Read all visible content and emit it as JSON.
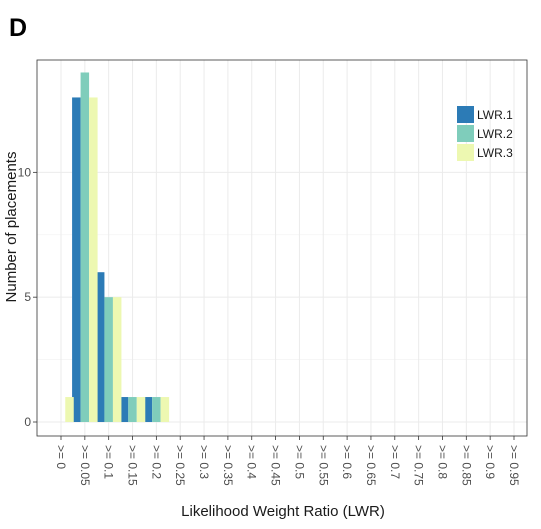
{
  "panel_label": "D",
  "chart_data": {
    "type": "bar",
    "xlabel": "Likelihood Weight Ratio (LWR)",
    "ylabel": "Number of placements",
    "categories": [
      ">= 0",
      ">= 0.05",
      ">= 0.1",
      ">= 0.15",
      ">= 0.2",
      ">= 0.25",
      ">= 0.3",
      ">= 0.35",
      ">= 0.4",
      ">= 0.45",
      ">= 0.5",
      ">= 0.55",
      ">= 0.6",
      ">= 0.65",
      ">= 0.7",
      ">= 0.75",
      ">= 0.8",
      ">= 0.85",
      ">= 0.9",
      ">= 0.95"
    ],
    "series": [
      {
        "name": "LWR.1",
        "color": "#2c7bb6",
        "values": [
          0,
          13,
          6,
          1,
          1,
          0,
          0,
          0,
          0,
          0,
          0,
          0,
          0,
          0,
          0,
          0,
          0,
          0,
          0,
          0
        ]
      },
      {
        "name": "LWR.2",
        "color": "#7fcdbb",
        "values": [
          0,
          14,
          5,
          1,
          1,
          0,
          0,
          0,
          0,
          0,
          0,
          0,
          0,
          0,
          0,
          0,
          0,
          0,
          0,
          0
        ]
      },
      {
        "name": "LWR.3",
        "color": "#edf8b1",
        "values": [
          1,
          13,
          5,
          1,
          1,
          0,
          0,
          0,
          0,
          0,
          0,
          0,
          0,
          0,
          0,
          0,
          0,
          0,
          0,
          0
        ]
      }
    ],
    "ylim": [
      0,
      14.5
    ],
    "yticks": [
      0,
      5,
      10
    ],
    "grid": true,
    "legend_position": "top-right",
    "panel_background": "#ffffff",
    "grid_color": "#ebebeb",
    "border_color": "#333333"
  }
}
